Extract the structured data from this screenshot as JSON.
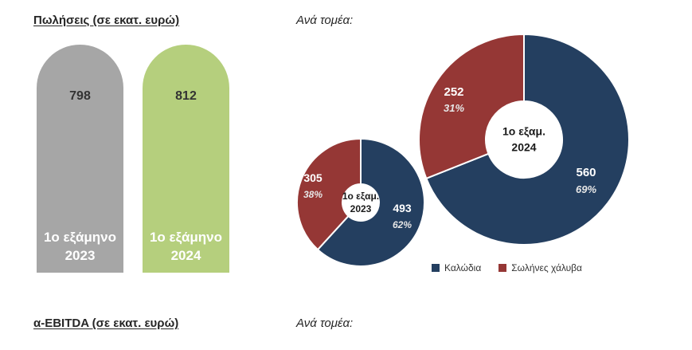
{
  "headings": {
    "sales": "Πωλήσεις (σε εκατ. ευρώ)",
    "by_sector_1": "Ανά τομέα:",
    "ebitda": "α-EBITDA (σε εκατ. ευρώ)",
    "by_sector_2": "Ανά τομέα:"
  },
  "colors": {
    "bar_2023": "#a6a6a6",
    "bar_2024": "#b5cf7d",
    "cables": "#243f60",
    "steel_pipes": "#953735"
  },
  "chart_data": [
    {
      "type": "bar",
      "categories": [
        "1ο εξάμηνο 2023",
        "1ο εξάμηνο 2024"
      ],
      "category_lines": [
        [
          "1ο εξάμηνο",
          "2023"
        ],
        [
          "1ο εξάμηνο",
          "2024"
        ]
      ],
      "values": [
        798,
        812
      ],
      "value_labels": [
        "798",
        "812"
      ]
    },
    {
      "type": "pie",
      "center_label": [
        "1ο εξαμ.",
        "2023"
      ],
      "slices": [
        {
          "name": "Καλώδια",
          "value": 493,
          "value_label": "493",
          "percent_label": "62%"
        },
        {
          "name": "Σωλήνες χάλυβα",
          "value": 305,
          "value_label": "305",
          "percent_label": "38%"
        }
      ]
    },
    {
      "type": "pie",
      "center_label": [
        "1ο εξαμ.",
        "2024"
      ],
      "slices": [
        {
          "name": "Καλώδια",
          "value": 560,
          "value_label": "560",
          "percent_label": "69%"
        },
        {
          "name": "Σωλήνες χάλυβα",
          "value": 252,
          "value_label": "252",
          "percent_label": "31%"
        }
      ]
    }
  ],
  "legend": [
    {
      "label": "Καλώδια",
      "color": "#243f60"
    },
    {
      "label": "Σωλήνες χάλυβα",
      "color": "#953735"
    }
  ]
}
